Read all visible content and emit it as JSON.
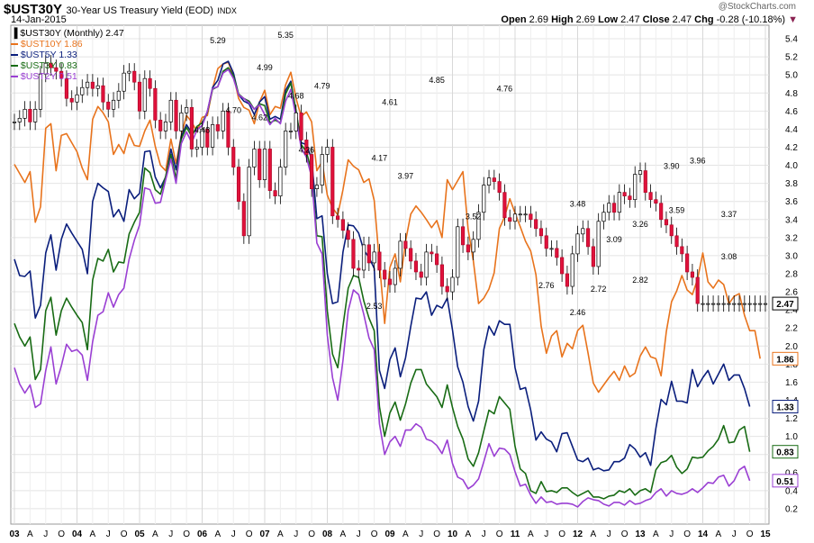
{
  "header": {
    "symbol": "$UST30Y",
    "description": "30-Year US Treasury Yield (EOD)",
    "exchange": "INDX",
    "date": "14-Jan-2015",
    "watermark": "@StockCharts.com",
    "open_label": "Open",
    "open": "2.69",
    "high_label": "High",
    "high": "2.69",
    "low_label": "Low",
    "low": "2.47",
    "close_label": "Close",
    "close": "2.47",
    "chg_label": "Chg",
    "chg": "-0.28 (-10.18%)"
  },
  "legend": [
    {
      "text": "$UST30Y (Monthly) 2.47",
      "color": "#000000"
    },
    {
      "text": "$UST10Y 1.86",
      "color": "#e8731c"
    },
    {
      "text": "$UST5Y 1.33",
      "color": "#0a1e7c"
    },
    {
      "text": "$UST3Y 0.83",
      "color": "#186b14"
    },
    {
      "text": "$UST2Y 0.51",
      "color": "#9a3fd3"
    }
  ],
  "chart_data": {
    "type": "line",
    "title": "30-Year US Treasury Yield (EOD)",
    "x_ticks": [
      "03",
      "A",
      "J",
      "O",
      "04",
      "A",
      "J",
      "O",
      "05",
      "A",
      "J",
      "O",
      "06",
      "A",
      "J",
      "O",
      "07",
      "A",
      "J",
      "O",
      "08",
      "A",
      "J",
      "O",
      "09",
      "A",
      "J",
      "O",
      "10",
      "A",
      "J",
      "O",
      "11",
      "A",
      "J",
      "O",
      "12",
      "A",
      "J",
      "O",
      "13",
      "A",
      "J",
      "O",
      "14",
      "A",
      "J",
      "O",
      "15"
    ],
    "y_ticks": [
      "0.2",
      "0.4",
      "0.6",
      "0.8",
      "1.0",
      "1.2",
      "1.4",
      "1.6",
      "1.8",
      "2.0",
      "2.2",
      "2.4",
      "2.6",
      "2.8",
      "3.0",
      "3.2",
      "3.4",
      "3.6",
      "3.8",
      "4.0",
      "4.2",
      "4.4",
      "4.6",
      "4.8",
      "5.0",
      "5.2",
      "5.4"
    ],
    "ylim": [
      0.0,
      5.5
    ],
    "x_start_year": 2003,
    "grid": true,
    "last_value_labels": [
      "2.47",
      "1.86",
      "1.33",
      "0.83",
      "0.51"
    ],
    "annotations": [
      {
        "month": 39,
        "value": 5.29,
        "text": "5.29",
        "pos": "above"
      },
      {
        "month": 52,
        "value": 5.35,
        "text": "5.35",
        "pos": "above"
      },
      {
        "month": 48,
        "value": 4.99,
        "text": "4.99",
        "pos": "above"
      },
      {
        "month": 36,
        "value": 4.48,
        "text": "4.48",
        "pos": "below"
      },
      {
        "month": 42,
        "value": 4.7,
        "text": "4.70",
        "pos": "below"
      },
      {
        "month": 47,
        "value": 4.62,
        "text": "4.62",
        "pos": "below"
      },
      {
        "month": 54,
        "value": 4.68,
        "text": "4.68",
        "pos": "above"
      },
      {
        "month": 59,
        "value": 4.79,
        "text": "4.79",
        "pos": "above"
      },
      {
        "month": 56,
        "value": 4.26,
        "text": "4.26",
        "pos": "below"
      },
      {
        "month": 72,
        "value": 4.61,
        "text": "4.61",
        "pos": "above"
      },
      {
        "month": 81,
        "value": 4.85,
        "text": "4.85",
        "pos": "above"
      },
      {
        "month": 70,
        "value": 4.17,
        "text": "4.17",
        "pos": "below"
      },
      {
        "month": 75,
        "value": 3.97,
        "text": "3.97",
        "pos": "below"
      },
      {
        "month": 94,
        "value": 4.76,
        "text": "4.76",
        "pos": "above"
      },
      {
        "month": 88,
        "value": 3.52,
        "text": "3.52",
        "pos": "below"
      },
      {
        "month": 69,
        "value": 2.53,
        "text": "2.53",
        "pos": "below"
      },
      {
        "month": 108,
        "value": 3.48,
        "text": "3.48",
        "pos": "above"
      },
      {
        "month": 115,
        "value": 3.09,
        "text": "3.09",
        "pos": "above"
      },
      {
        "month": 102,
        "value": 2.76,
        "text": "2.76",
        "pos": "below"
      },
      {
        "month": 112,
        "value": 2.72,
        "text": "2.72",
        "pos": "below"
      },
      {
        "month": 108,
        "value": 2.46,
        "text": "2.46",
        "pos": "below"
      },
      {
        "month": 120,
        "value": 3.26,
        "text": "3.26",
        "pos": "above"
      },
      {
        "month": 120,
        "value": 2.82,
        "text": "2.82",
        "pos": "below"
      },
      {
        "month": 126,
        "value": 3.9,
        "text": "3.90",
        "pos": "above"
      },
      {
        "month": 131,
        "value": 3.96,
        "text": "3.96",
        "pos": "above"
      },
      {
        "month": 127,
        "value": 3.59,
        "text": "3.59",
        "pos": "below"
      },
      {
        "month": 137,
        "value": 3.37,
        "text": "3.37",
        "pos": "above"
      },
      {
        "month": 137,
        "value": 3.08,
        "text": "3.08",
        "pos": "below"
      }
    ],
    "series": [
      {
        "name": "$UST30Y",
        "type": "candlestick",
        "color": "#000000",
        "close": [
          4.48,
          4.52,
          4.62,
          4.48,
          4.62,
          5.01,
          5.13,
          5.08,
          5.04,
          4.96,
          4.74,
          4.7,
          4.78,
          4.86,
          4.92,
          4.85,
          4.88,
          4.7,
          4.62,
          4.72,
          4.82,
          5.02,
          5.04,
          4.92,
          4.6,
          4.96,
          4.85,
          4.5,
          4.38,
          4.48,
          4.72,
          4.38,
          4.58,
          4.64,
          4.18,
          4.2,
          4.4,
          4.2,
          4.45,
          4.38,
          4.6,
          4.2,
          3.98,
          3.6,
          3.22,
          3.98,
          4.18,
          3.84,
          4.18,
          3.72,
          3.66,
          3.98,
          4.38,
          4.38,
          4.58,
          4.28,
          4.12,
          3.74,
          3.78,
          4.12,
          4.2,
          3.44,
          3.4,
          3.28,
          3.18,
          2.86,
          2.84,
          3.12,
          2.92,
          3.04,
          2.84,
          2.74,
          2.68,
          2.86,
          3.16,
          3.08,
          2.94,
          2.82,
          2.76,
          3.04,
          3.02,
          2.9,
          2.66,
          2.6,
          2.76,
          3.32,
          3.12,
          3.04,
          3.18,
          3.48,
          3.78,
          3.86,
          3.82,
          3.7,
          3.42,
          3.38,
          3.46,
          3.46,
          3.46,
          3.4,
          3.3,
          3.22,
          3.08,
          3.08,
          2.98,
          2.8,
          2.66,
          3.02,
          3.24,
          3.3,
          3.1,
          2.88,
          3.38,
          3.48,
          3.58,
          3.48,
          3.7,
          3.66,
          3.62,
          3.9,
          3.94,
          3.7,
          3.62,
          3.58,
          3.4,
          3.34,
          3.22,
          3.1,
          3.02,
          2.82,
          2.76,
          2.47,
          2.47,
          2.47,
          2.47,
          2.47,
          2.47,
          2.47,
          2.47,
          2.47,
          2.47,
          2.47,
          2.47,
          2.47
        ]
      },
      {
        "name": "$UST10Y",
        "color": "#e8731c",
        "values": [
          4.01,
          3.91,
          3.81,
          3.93,
          3.37,
          3.54,
          4.41,
          4.46,
          3.94,
          4.33,
          4.35,
          4.25,
          4.15,
          3.97,
          3.84,
          4.51,
          4.65,
          4.58,
          4.48,
          4.12,
          4.23,
          4.13,
          4.35,
          4.22,
          4.21,
          4.38,
          4.5,
          4.21,
          4.0,
          3.94,
          4.29,
          4.02,
          4.33,
          4.55,
          4.48,
          4.37,
          4.53,
          4.55,
          4.85,
          5.07,
          5.12,
          5.14,
          4.99,
          4.74,
          4.64,
          4.61,
          4.46,
          4.7,
          4.83,
          4.56,
          4.65,
          4.63,
          4.89,
          5.03,
          4.74,
          4.54,
          4.59,
          4.48,
          3.94,
          4.04,
          3.67,
          3.53,
          3.45,
          3.73,
          4.06,
          3.99,
          3.95,
          3.81,
          3.85,
          3.61,
          2.92,
          2.25,
          2.87,
          3.02,
          2.71,
          3.16,
          3.46,
          3.55,
          3.48,
          3.4,
          3.31,
          3.39,
          3.2,
          3.84,
          3.73,
          3.83,
          3.93,
          3.29,
          2.94,
          2.47,
          2.53,
          2.63,
          2.81,
          3.3,
          3.43,
          3.63,
          3.47,
          3.32,
          3.16,
          3.05,
          2.79,
          2.22,
          1.92,
          2.11,
          2.17,
          1.88,
          2.03,
          1.97,
          2.17,
          2.23,
          1.92,
          1.59,
          1.49,
          1.57,
          1.65,
          1.72,
          1.62,
          1.78,
          1.66,
          1.7,
          1.89,
          1.99,
          1.88,
          1.86,
          1.67,
          2.16,
          2.49,
          2.61,
          2.78,
          2.62,
          2.57,
          2.74,
          3.03,
          2.71,
          2.64,
          2.73,
          2.68,
          2.47,
          2.55,
          2.58,
          2.34,
          2.17,
          2.17,
          1.86
        ]
      },
      {
        "name": "$UST5Y",
        "color": "#0a1e7c",
        "values": [
          2.96,
          2.78,
          2.77,
          2.83,
          2.31,
          2.45,
          3.03,
          3.23,
          2.84,
          3.18,
          3.35,
          3.25,
          3.16,
          3.07,
          2.8,
          3.6,
          3.8,
          3.75,
          3.71,
          3.43,
          3.51,
          3.38,
          3.73,
          3.63,
          3.69,
          4.15,
          4.16,
          3.87,
          3.75,
          3.87,
          4.18,
          3.95,
          4.32,
          4.45,
          4.36,
          4.39,
          4.44,
          4.59,
          4.86,
          4.94,
          5.12,
          5.15,
          5.02,
          4.78,
          4.71,
          4.68,
          4.56,
          4.7,
          4.76,
          4.51,
          4.54,
          4.51,
          4.83,
          4.93,
          4.59,
          4.25,
          4.23,
          4.07,
          3.41,
          3.44,
          2.8,
          2.47,
          2.49,
          3.04,
          3.34,
          3.33,
          3.25,
          3.06,
          2.98,
          2.86,
          1.73,
          1.53,
          1.85,
          1.98,
          1.66,
          1.87,
          2.22,
          2.53,
          2.52,
          2.6,
          2.34,
          2.45,
          2.42,
          2.53,
          2.18,
          1.77,
          1.6,
          1.33,
          1.17,
          1.39,
          1.96,
          2.22,
          2.12,
          2.28,
          2.24,
          2.24,
          1.76,
          1.52,
          1.54,
          1.29,
          0.96,
          1.05,
          0.97,
          0.94,
          0.83,
          1.03,
          1.04,
          0.89,
          0.74,
          0.72,
          0.76,
          0.63,
          0.65,
          0.62,
          0.63,
          0.72,
          0.72,
          0.76,
          0.91,
          0.86,
          0.77,
          0.82,
          0.68,
          1.09,
          1.41,
          1.35,
          1.61,
          1.39,
          1.39,
          1.37,
          1.74,
          1.55,
          1.65,
          1.73,
          1.58,
          1.69,
          1.8,
          1.62,
          1.68,
          1.68,
          1.53,
          1.33
        ]
      },
      {
        "name": "$UST3Y",
        "color": "#186b14",
        "values": [
          2.25,
          2.1,
          2.0,
          2.1,
          1.63,
          1.74,
          2.39,
          2.54,
          2.12,
          2.39,
          2.53,
          2.43,
          2.34,
          2.26,
          1.96,
          2.73,
          2.97,
          2.94,
          3.07,
          2.82,
          2.93,
          2.92,
          3.24,
          3.37,
          3.48,
          3.97,
          3.92,
          3.73,
          3.68,
          3.88,
          4.12,
          3.85,
          4.29,
          4.42,
          4.32,
          4.43,
          4.47,
          4.59,
          4.84,
          4.87,
          5.04,
          5.08,
          4.99,
          4.79,
          4.74,
          4.71,
          4.62,
          4.68,
          4.66,
          4.47,
          4.5,
          4.47,
          4.79,
          4.91,
          4.6,
          4.23,
          4.15,
          3.93,
          3.22,
          3.21,
          2.39,
          1.91,
          1.76,
          2.22,
          2.64,
          2.78,
          2.76,
          2.5,
          2.31,
          2.17,
          1.33,
          1.0,
          1.26,
          1.38,
          1.18,
          1.36,
          1.59,
          1.74,
          1.74,
          1.58,
          1.51,
          1.44,
          1.32,
          1.57,
          1.32,
          1.11,
          0.97,
          0.75,
          0.67,
          0.82,
          1.06,
          1.29,
          1.25,
          1.44,
          1.37,
          1.3,
          0.89,
          0.64,
          0.59,
          0.4,
          0.37,
          0.5,
          0.39,
          0.4,
          0.38,
          0.43,
          0.43,
          0.38,
          0.34,
          0.37,
          0.4,
          0.33,
          0.33,
          0.31,
          0.34,
          0.35,
          0.4,
          0.38,
          0.42,
          0.35,
          0.4,
          0.42,
          0.38,
          0.63,
          0.71,
          0.73,
          0.79,
          0.66,
          0.59,
          0.64,
          0.77,
          0.76,
          0.77,
          0.84,
          0.89,
          0.97,
          1.12,
          0.93,
          0.94,
          1.07,
          1.11,
          0.83
        ]
      },
      {
        "name": "$UST2Y",
        "color": "#9a3fd3",
        "values": [
          1.76,
          1.58,
          1.48,
          1.57,
          1.32,
          1.36,
          1.73,
          1.99,
          1.58,
          1.78,
          2.02,
          1.94,
          1.96,
          1.9,
          1.62,
          2.05,
          2.34,
          2.38,
          2.59,
          2.43,
          2.57,
          2.64,
          2.96,
          3.17,
          3.34,
          3.75,
          3.73,
          3.58,
          3.59,
          3.84,
          4.07,
          3.8,
          4.24,
          4.37,
          4.25,
          4.39,
          4.44,
          4.6,
          4.85,
          4.87,
          5.02,
          5.06,
          4.96,
          4.78,
          4.74,
          4.69,
          4.62,
          4.67,
          4.56,
          4.45,
          4.52,
          4.46,
          4.71,
          4.84,
          4.53,
          4.19,
          4.09,
          3.87,
          3.14,
          3.02,
          2.12,
          1.65,
          1.4,
          1.84,
          2.39,
          2.62,
          2.57,
          2.35,
          2.09,
          1.96,
          1.14,
          0.8,
          0.94,
          1.0,
          0.89,
          1.07,
          1.07,
          1.14,
          1.1,
          0.97,
          0.95,
          0.9,
          0.81,
          0.96,
          0.7,
          0.55,
          0.52,
          0.42,
          0.46,
          0.53,
          0.72,
          0.92,
          0.78,
          0.87,
          0.86,
          0.8,
          0.61,
          0.45,
          0.47,
          0.35,
          0.26,
          0.33,
          0.27,
          0.28,
          0.25,
          0.26,
          0.26,
          0.25,
          0.22,
          0.28,
          0.32,
          0.3,
          0.29,
          0.25,
          0.23,
          0.27,
          0.27,
          0.24,
          0.29,
          0.25,
          0.26,
          0.29,
          0.31,
          0.38,
          0.42,
          0.34,
          0.4,
          0.37,
          0.36,
          0.38,
          0.42,
          0.38,
          0.43,
          0.49,
          0.48,
          0.55,
          0.57,
          0.45,
          0.51,
          0.63,
          0.67,
          0.51
        ]
      }
    ]
  }
}
